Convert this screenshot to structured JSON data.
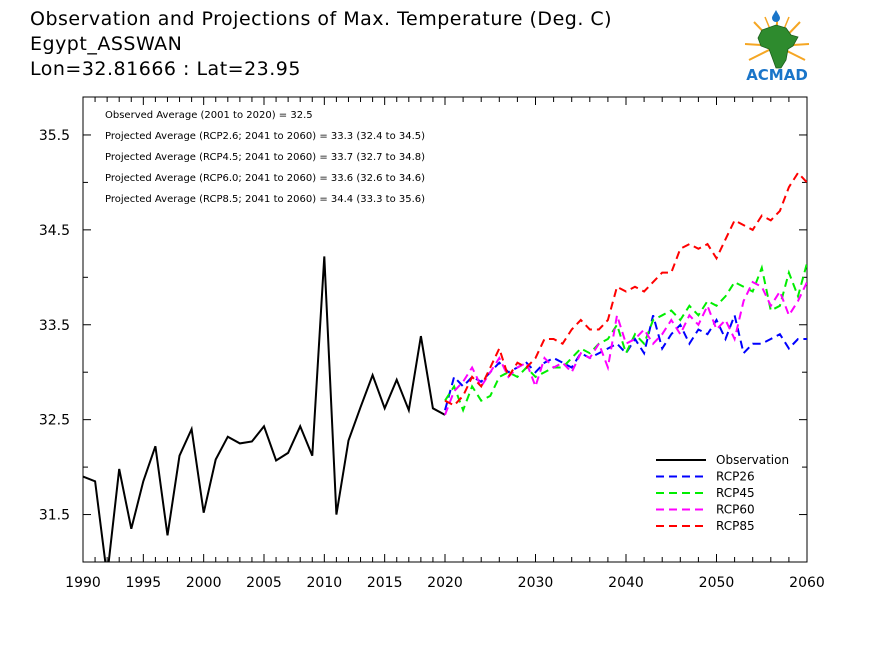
{
  "title": {
    "line1": "Observation and Projections of Max. Temperature (Deg. C)",
    "line2": "Egypt_ASSWAN",
    "line3": "Lon=32.81666 : Lat=23.95"
  },
  "logo_text": "ACMAD",
  "colors": {
    "observation": "#000000",
    "RCP26": "#0000ff",
    "RCP45": "#00ee00",
    "RCP60": "#ff00ff",
    "RCP85": "#ff0000",
    "logo_blue": "#1a75c9",
    "logo_green": "#2e8b2e",
    "logo_orange": "#f5a623"
  },
  "chart_data": {
    "type": "line",
    "annotations": [
      "Observed Average (2001 to 2020) = 32.5",
      "Projected Average (RCP2.6; 2041 to 2060) = 33.3 (32.4 to 34.5)",
      "Projected Average (RCP4.5; 2041 to 2060) = 33.7 (32.7 to 34.8)",
      "Projected Average (RCP6.0; 2041 to 2060) = 33.6 (32.6 to 34.6)",
      "Projected Average (RCP8.5; 2041 to 2060) = 34.4 (33.3 to 35.6)"
    ],
    "ylim": [
      31,
      35.9
    ],
    "yticks": [
      31.5,
      32.5,
      33.5,
      34.5,
      35.5
    ],
    "ytick_labels": [
      "31.5",
      "32.5",
      "33.5",
      "34.5",
      "35.5"
    ],
    "xlim": [
      1990,
      2060
    ],
    "xticks_left": [
      1990,
      1995,
      2000,
      2005,
      2010,
      2015,
      2020
    ],
    "xticks_right": [
      2030,
      2040,
      2050,
      2060
    ],
    "xtick_labels": [
      "1990",
      "1995",
      "2000",
      "2005",
      "2010",
      "2015",
      "2020",
      "2030",
      "2040",
      "2050",
      "2060"
    ],
    "legend_position": "bottom-right",
    "series": [
      {
        "name": "Observation",
        "key": "observation",
        "style": "solid",
        "x": [
          1990,
          1991,
          1992,
          1993,
          1994,
          1995,
          1996,
          1997,
          1998,
          1999,
          2000,
          2001,
          2002,
          2003,
          2004,
          2005,
          2006,
          2007,
          2008,
          2009,
          2010,
          2011,
          2012,
          2013,
          2014,
          2015,
          2016,
          2017,
          2018,
          2019,
          2020
        ],
        "values": [
          31.9,
          31.85,
          30.85,
          31.98,
          31.35,
          31.85,
          32.22,
          31.28,
          32.12,
          32.4,
          31.52,
          32.08,
          32.32,
          32.25,
          32.27,
          32.43,
          32.07,
          32.15,
          32.43,
          32.12,
          34.22,
          31.5,
          32.28,
          32.63,
          32.97,
          32.62,
          32.92,
          32.6,
          33.38,
          32.62,
          32.55
        ]
      },
      {
        "name": "RCP26",
        "key": "RCP26",
        "style": "dashed",
        "x": [
          2020,
          2021,
          2022,
          2023,
          2024,
          2025,
          2026,
          2027,
          2028,
          2029,
          2030,
          2031,
          2032,
          2033,
          2034,
          2035,
          2036,
          2037,
          2038,
          2039,
          2040,
          2041,
          2042,
          2043,
          2044,
          2045,
          2046,
          2047,
          2048,
          2049,
          2050,
          2051,
          2052,
          2053,
          2054,
          2055,
          2056,
          2057,
          2058,
          2059,
          2060
        ],
        "values": [
          32.6,
          32.95,
          32.85,
          32.95,
          32.9,
          33.0,
          33.1,
          33.0,
          33.05,
          33.1,
          33.0,
          33.1,
          33.15,
          33.1,
          33.05,
          33.2,
          33.15,
          33.2,
          33.25,
          33.3,
          33.2,
          33.35,
          33.2,
          33.6,
          33.25,
          33.4,
          33.5,
          33.3,
          33.45,
          33.4,
          33.55,
          33.35,
          33.6,
          33.2,
          33.3,
          33.3,
          33.35,
          33.4,
          33.25,
          33.35,
          33.35
        ]
      },
      {
        "name": "RCP45",
        "key": "RCP45",
        "style": "dashed",
        "x": [
          2020,
          2021,
          2022,
          2023,
          2024,
          2025,
          2026,
          2027,
          2028,
          2029,
          2030,
          2031,
          2032,
          2033,
          2034,
          2035,
          2036,
          2037,
          2038,
          2039,
          2040,
          2041,
          2042,
          2043,
          2044,
          2045,
          2046,
          2047,
          2048,
          2049,
          2050,
          2051,
          2052,
          2053,
          2054,
          2055,
          2056,
          2057,
          2058,
          2059,
          2060
        ],
        "values": [
          32.7,
          32.85,
          32.6,
          32.85,
          32.7,
          32.75,
          32.95,
          33.0,
          32.95,
          33.05,
          32.95,
          33.0,
          33.05,
          33.05,
          33.15,
          33.25,
          33.2,
          33.3,
          33.35,
          33.5,
          33.2,
          33.4,
          33.3,
          33.55,
          33.6,
          33.65,
          33.55,
          33.7,
          33.6,
          33.75,
          33.7,
          33.8,
          33.95,
          33.9,
          33.85,
          34.1,
          33.65,
          33.7,
          34.05,
          33.8,
          34.15
        ]
      },
      {
        "name": "RCP60",
        "key": "RCP60",
        "style": "dashed",
        "x": [
          2020,
          2021,
          2022,
          2023,
          2024,
          2025,
          2026,
          2027,
          2028,
          2029,
          2030,
          2031,
          2032,
          2033,
          2034,
          2035,
          2036,
          2037,
          2038,
          2039,
          2040,
          2041,
          2042,
          2043,
          2044,
          2045,
          2046,
          2047,
          2048,
          2049,
          2050,
          2051,
          2052,
          2053,
          2054,
          2055,
          2056,
          2057,
          2058,
          2059,
          2060
        ],
        "values": [
          32.55,
          32.8,
          32.9,
          33.05,
          32.85,
          33.0,
          33.15,
          32.95,
          33.05,
          33.1,
          32.85,
          33.15,
          33.05,
          33.1,
          33.0,
          33.2,
          33.15,
          33.3,
          33.05,
          33.6,
          33.3,
          33.35,
          33.45,
          33.3,
          33.4,
          33.55,
          33.4,
          33.6,
          33.5,
          33.7,
          33.45,
          33.55,
          33.35,
          33.75,
          33.95,
          33.9,
          33.7,
          33.85,
          33.6,
          33.75,
          33.95
        ]
      },
      {
        "name": "RCP85",
        "key": "RCP85",
        "style": "dashed",
        "x": [
          2020,
          2021,
          2022,
          2023,
          2024,
          2025,
          2026,
          2027,
          2028,
          2029,
          2030,
          2031,
          2032,
          2033,
          2034,
          2035,
          2036,
          2037,
          2038,
          2039,
          2040,
          2041,
          2042,
          2043,
          2044,
          2045,
          2046,
          2047,
          2048,
          2049,
          2050,
          2051,
          2052,
          2053,
          2054,
          2055,
          2056,
          2057,
          2058,
          2059,
          2060
        ],
        "values": [
          32.7,
          32.65,
          32.75,
          32.95,
          32.85,
          33.05,
          33.25,
          32.95,
          33.1,
          33.05,
          33.15,
          33.35,
          33.35,
          33.3,
          33.45,
          33.55,
          33.45,
          33.45,
          33.55,
          33.9,
          33.85,
          33.9,
          33.85,
          33.95,
          34.05,
          34.05,
          34.3,
          34.35,
          34.3,
          34.35,
          34.2,
          34.4,
          34.6,
          34.55,
          34.5,
          34.65,
          34.6,
          34.7,
          34.95,
          35.1,
          35.0
        ]
      }
    ]
  }
}
